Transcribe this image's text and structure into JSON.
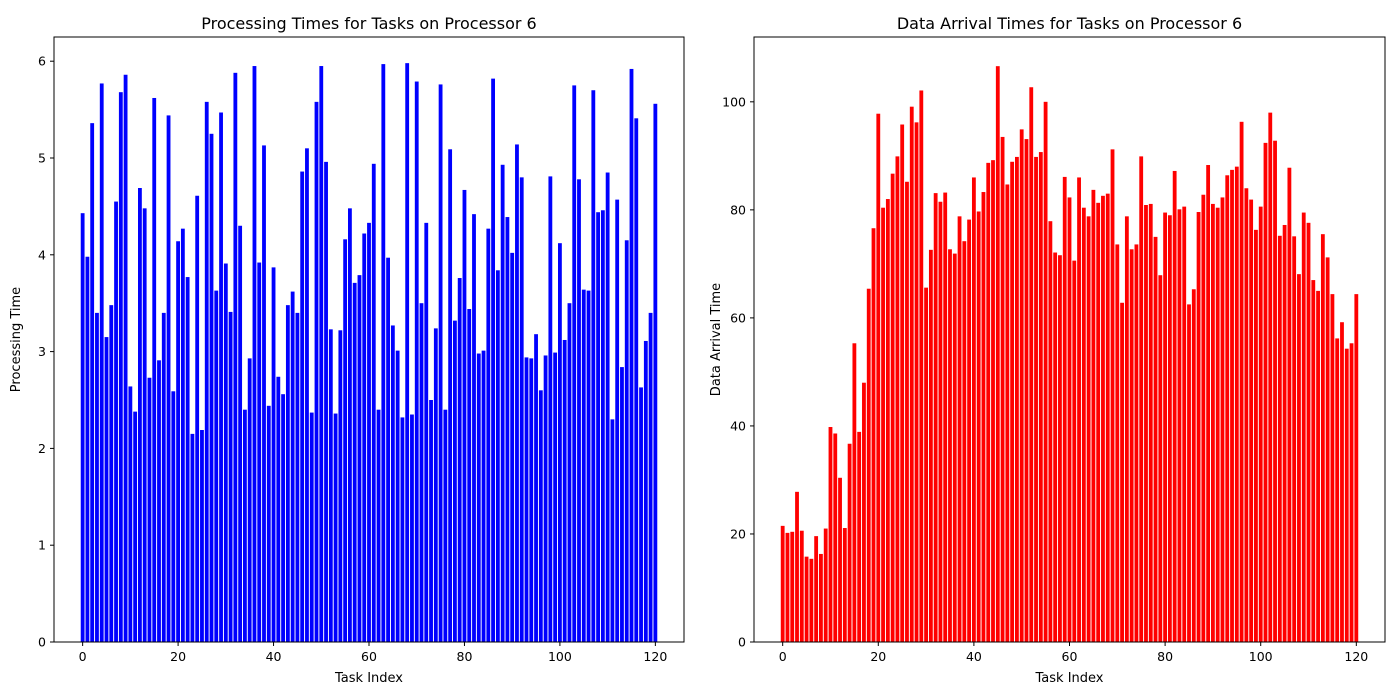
{
  "chart_data": [
    {
      "type": "bar",
      "title": "Processing Times for Tasks on Processor 6",
      "xlabel": "Task Index",
      "ylabel": "Processing Time",
      "color": "#0000ff",
      "xlim": [
        -6,
        126
      ],
      "ylim": [
        0,
        6.25
      ],
      "xticks": [
        0,
        20,
        40,
        60,
        80,
        100,
        120
      ],
      "yticks": [
        0,
        1,
        2,
        3,
        4,
        5,
        6
      ],
      "grid": false,
      "x_start": 0,
      "values": [
        4.43,
        3.98,
        5.36,
        3.4,
        5.77,
        3.15,
        3.48,
        4.55,
        5.68,
        5.86,
        2.64,
        2.38,
        4.69,
        4.48,
        2.73,
        5.62,
        2.91,
        3.4,
        5.44,
        2.59,
        4.14,
        4.27,
        3.77,
        2.15,
        4.61,
        2.19,
        5.58,
        5.25,
        3.63,
        5.47,
        3.91,
        3.41,
        5.88,
        4.3,
        2.4,
        2.93,
        5.95,
        3.92,
        5.13,
        2.44,
        3.87,
        2.74,
        2.56,
        3.48,
        3.62,
        3.4,
        4.86,
        5.1,
        2.37,
        5.58,
        5.95,
        4.96,
        3.23,
        2.36,
        3.22,
        4.16,
        4.48,
        3.71,
        3.79,
        4.22,
        4.33,
        4.94,
        2.4,
        5.97,
        3.97,
        3.27,
        3.01,
        2.32,
        5.98,
        2.35,
        5.79,
        3.5,
        4.33,
        2.5,
        3.24,
        5.76,
        2.4,
        5.09,
        3.32,
        3.76,
        4.67,
        3.44,
        4.42,
        2.98,
        3.01,
        4.27,
        5.82,
        3.84,
        4.93,
        4.39,
        4.02,
        5.14,
        4.8,
        2.94,
        2.93,
        3.18,
        2.6,
        2.96,
        4.81,
        2.99,
        4.12,
        3.12,
        3.5,
        5.75,
        4.78,
        3.64,
        3.63,
        5.7,
        4.44,
        4.46,
        4.85,
        2.3,
        4.57,
        2.84,
        4.15,
        5.92,
        5.41,
        2.63,
        3.11,
        3.4,
        5.56
      ]
    },
    {
      "type": "bar",
      "title": "Data Arrival Times for Tasks on Processor 6",
      "xlabel": "Task Index",
      "ylabel": "Data Arrival Time",
      "color": "#ff0000",
      "xlim": [
        -6,
        126
      ],
      "ylim": [
        0,
        112
      ],
      "xticks": [
        0,
        20,
        40,
        60,
        80,
        100,
        120
      ],
      "yticks": [
        0,
        20,
        40,
        60,
        80,
        100
      ],
      "grid": false,
      "x_start": 0,
      "values": [
        21.5,
        20.2,
        20.4,
        27.8,
        20.6,
        15.8,
        15.4,
        19.6,
        16.3,
        21.0,
        39.8,
        38.6,
        30.4,
        21.1,
        36.7,
        55.3,
        38.9,
        48.0,
        65.4,
        76.6,
        97.8,
        80.4,
        82.0,
        86.7,
        89.9,
        95.8,
        85.2,
        99.1,
        96.2,
        102.1,
        65.6,
        72.6,
        83.1,
        81.5,
        83.2,
        72.7,
        71.9,
        78.8,
        74.2,
        78.2,
        86.0,
        79.7,
        83.3,
        88.7,
        89.2,
        106.6,
        93.5,
        84.7,
        88.9,
        89.8,
        94.9,
        93.1,
        102.7,
        89.8,
        90.7,
        100.0,
        77.9,
        72.1,
        71.6,
        86.1,
        82.3,
        70.6,
        86.0,
        80.4,
        78.8,
        83.7,
        81.3,
        82.6,
        83.0,
        91.2,
        73.6,
        62.8,
        78.8,
        72.7,
        73.6,
        89.9,
        80.9,
        81.1,
        75.0,
        67.9,
        79.5,
        79.0,
        87.2,
        80.1,
        80.6,
        62.5,
        65.3,
        79.6,
        82.8,
        88.3,
        81.1,
        80.4,
        82.3,
        86.4,
        87.4,
        88.0,
        96.3,
        84.0,
        81.9,
        76.3,
        80.6,
        92.4,
        98.0,
        92.8,
        75.2,
        77.2,
        87.8,
        75.1,
        68.1,
        79.5,
        77.6,
        67.0,
        65.0,
        75.5,
        71.2,
        64.4,
        56.2,
        59.2,
        54.3,
        55.3,
        64.4
      ]
    }
  ]
}
